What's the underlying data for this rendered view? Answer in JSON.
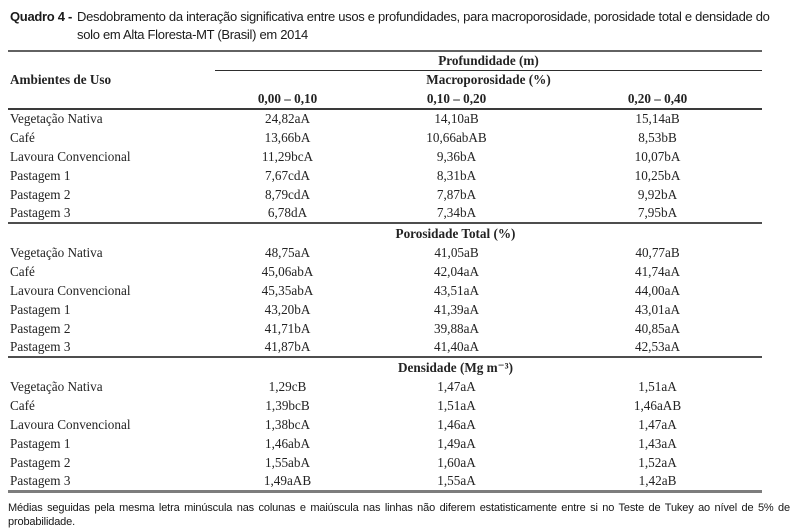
{
  "caption": {
    "label": "Quadro 4 -",
    "text": "Desdobramento da interação significativa entre usos e profundidades, para macroporosidade, porosidade total e densidade do solo em Alta Floresta-MT (Brasil) em 2014"
  },
  "table": {
    "row_header": "Ambientes de Uso",
    "depth_header": "Profundidade (m)",
    "depth_columns": [
      "0,00 – 0,10",
      "0,10 – 0,20",
      "0,20 – 0,40"
    ],
    "sections": [
      {
        "title": "Macroporosidade (%)",
        "rows": [
          {
            "label": "Vegetação Nativa",
            "values": [
              "24,82aA",
              "14,10aB",
              "15,14aB"
            ]
          },
          {
            "label": "Café",
            "values": [
              "13,66bA",
              "10,66abAB",
              "8,53bB"
            ]
          },
          {
            "label": "Lavoura Convencional",
            "values": [
              "11,29bcA",
              "9,36bA",
              "10,07bA"
            ]
          },
          {
            "label": "Pastagem 1",
            "values": [
              "7,67cdA",
              "8,31bA",
              "10,25bA"
            ]
          },
          {
            "label": "Pastagem 2",
            "values": [
              "8,79cdA",
              "7,87bA",
              "9,92bA"
            ]
          },
          {
            "label": "Pastagem 3",
            "values": [
              "6,78dA",
              "7,34bA",
              "7,95bA"
            ]
          }
        ]
      },
      {
        "title": "Porosidade Total (%)",
        "rows": [
          {
            "label": "Vegetação Nativa",
            "values": [
              "48,75aA",
              "41,05aB",
              "40,77aB"
            ]
          },
          {
            "label": "Café",
            "values": [
              "45,06abA",
              "42,04aA",
              "41,74aA"
            ]
          },
          {
            "label": "Lavoura Convencional",
            "values": [
              "45,35abA",
              "43,51aA",
              "44,00aA"
            ]
          },
          {
            "label": "Pastagem 1",
            "values": [
              "43,20bA",
              "41,39aA",
              "43,01aA"
            ]
          },
          {
            "label": "Pastagem 2",
            "values": [
              "41,71bA",
              "39,88aA",
              "40,85aA"
            ]
          },
          {
            "label": "Pastagem 3",
            "values": [
              "41,87bA",
              "41,40aA",
              "42,53aA"
            ]
          }
        ]
      },
      {
        "title": "Densidade (Mg m⁻³)",
        "rows": [
          {
            "label": "Vegetação Nativa",
            "values": [
              "1,29cB",
              "1,47aA",
              "1,51aA"
            ]
          },
          {
            "label": "Café",
            "values": [
              "1,39bcB",
              "1,51aA",
              "1,46aAB"
            ]
          },
          {
            "label": "Lavoura Convencional",
            "values": [
              "1,38bcA",
              "1,46aA",
              "1,47aA"
            ]
          },
          {
            "label": "Pastagem 1",
            "values": [
              "1,46abA",
              "1,49aA",
              "1,43aA"
            ]
          },
          {
            "label": "Pastagem 2",
            "values": [
              "1,55abA",
              "1,60aA",
              "1,52aA"
            ]
          },
          {
            "label": "Pastagem 3",
            "values": [
              "1,49aAB",
              "1,55aA",
              "1,42aB"
            ]
          }
        ]
      }
    ]
  },
  "footnote": "Médias seguidas pela mesma letra minúscula nas colunas e maiúscula nas linhas não diferem estatisticamente entre si no Teste de Tukey ao nível de 5% de probabilidade."
}
